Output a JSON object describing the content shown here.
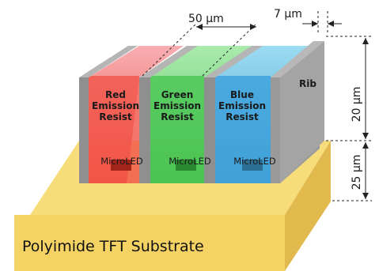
{
  "substrate": {
    "label": "Polyimide TFT Substrate",
    "color": "#f5d46a"
  },
  "chambers": [
    {
      "line1": "Red",
      "line2": "Emission",
      "line3": "Resist",
      "led": "MicroLED",
      "color": "#f0453a"
    },
    {
      "line1": "Green",
      "line2": "Emission",
      "line3": "Resist",
      "led": "MicroLED",
      "color": "#3fc049"
    },
    {
      "line1": "Blue",
      "line2": "Emission",
      "line3": "Resist",
      "led": "MicroLED",
      "color": "#3d9dd6"
    }
  ],
  "rib": {
    "label": "Rib",
    "color": "#9a9a9a"
  },
  "dimensions": {
    "pitch": "50 μm",
    "rib_width": "7 μm",
    "rib_height": "20 μm",
    "substrate_thickness": "25 μm"
  }
}
